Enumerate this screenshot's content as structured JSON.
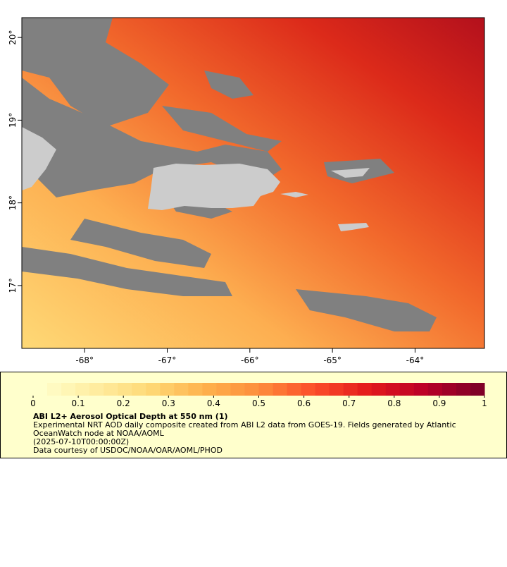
{
  "map": {
    "xlim": [
      -68.76,
      -63.16
    ],
    "ylim": [
      16.24,
      20.24
    ],
    "xticks": [
      {
        "value": -68,
        "label": "-68°"
      },
      {
        "value": -67,
        "label": "-67°"
      },
      {
        "value": -66,
        "label": "-66°"
      },
      {
        "value": -65,
        "label": "-65°"
      },
      {
        "value": -64,
        "label": "-64°"
      }
    ],
    "yticks": [
      {
        "value": 17,
        "label": "17°"
      },
      {
        "value": 18,
        "label": "18°"
      },
      {
        "value": 19,
        "label": "19°"
      },
      {
        "value": 20,
        "label": "20°"
      }
    ]
  },
  "colorbar": {
    "lim": [
      0,
      1
    ],
    "ticks": [
      0,
      0.1,
      0.2,
      0.3,
      0.4,
      0.5,
      0.6,
      0.7,
      0.8,
      0.9,
      1
    ],
    "colors": [
      "#ffffcc",
      "#ffeda0",
      "#fed976",
      "#feb24c",
      "#fd8d3c",
      "#fc4e2a",
      "#e31a1c",
      "#bd0026",
      "#800026"
    ]
  },
  "legend": {
    "title": "ABI L2+ Aerosol Optical Depth at 550 nm (1)",
    "lines": [
      "Experimental NRT AOD daily composite created from ABI L2 data from GOES-19. Fields generated by Atlantic",
      "OceanWatch node at NOAA/AOML",
      "(2025-07-10T00:00:00Z)",
      "Data courtesy of USDOC/NOAA/OAR/AOML/PHOD"
    ]
  }
}
